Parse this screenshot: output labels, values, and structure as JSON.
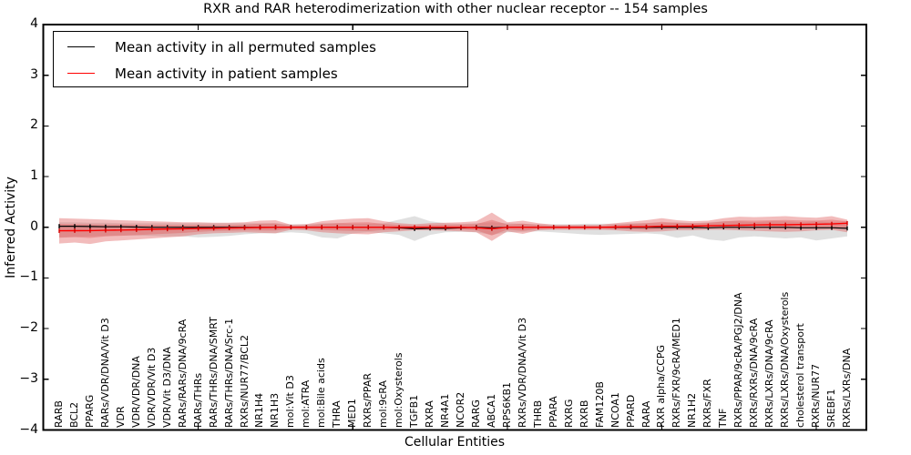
{
  "chart_data": {
    "type": "line",
    "title": "RXR and RAR heterodimerization with other nuclear receptor -- 154 samples",
    "xlabel": "Cellular Entities",
    "ylabel": "Inferred Activity",
    "ylim": [
      -4,
      4
    ],
    "ytick_values": [
      4,
      3,
      2,
      1,
      0,
      -1,
      -2,
      -3,
      -4
    ],
    "ytick_labels": [
      "4",
      "3",
      "2",
      "1",
      "0",
      "−1",
      "−2",
      "−3",
      "−4"
    ],
    "xtick_major_category_indices": [
      9,
      19,
      29,
      39,
      49
    ],
    "grid": false,
    "legend_position": "upper left",
    "categories": [
      "RARB",
      "BCL2",
      "PPARG",
      "RARs/VDR/DNA/Vit D3",
      "VDR",
      "VDR/VDR/DNA",
      "VDR/VDR/Vit D3",
      "VDR/Vit D3/DNA",
      "RARs/RARs/DNA/9cRA",
      "RARs/THRs",
      "RARs/THRs/DNA/SMRT",
      "RARs/THRs/DNA/Src-1",
      "RXRs/NUR77/BCL2",
      "NR1H4",
      "NR1H3",
      "mol:Vit D3",
      "mol:ATRA",
      "mol:Bile acids",
      "THRA",
      "MED1",
      "RXRs/PPAR",
      "mol:9cRA",
      "mol:Oxysterols",
      "TGFB1",
      "RXRA",
      "NR4A1",
      "NCOR2",
      "RARG",
      "ABCA1",
      "RPS6KB1",
      "RXRs/VDR/DNA/Vit D3",
      "THRB",
      "PPARA",
      "RXRG",
      "RXRB",
      "FAM120B",
      "NCOA1",
      "PPARD",
      "RARA",
      "RXR alpha/CCPG",
      "RXRs/FXR/9cRA/MED1",
      "NR1H2",
      "RXRs/FXR",
      "TNF",
      "RXRs/PPAR/9cRA/PGJ2/DNA",
      "RXRs/RXRs/DNA/9cRA",
      "RXRs/LXRs/DNA/9cRA",
      "RXRs/LXRs/DNA/Oxysterols",
      "cholesterol transport",
      "RXRs/NUR77",
      "SREBF1",
      "RXRs/LXRs/DNA"
    ],
    "series": [
      {
        "key": "permuted",
        "name": "Mean activity in all permuted samples",
        "color": "#000000",
        "marker_color": "#000000",
        "values": [
          0.02,
          0.02,
          0.015,
          0.01,
          0.01,
          0.005,
          0,
          0,
          0,
          0,
          0,
          0,
          0,
          0,
          0,
          0,
          0,
          0,
          0,
          0,
          0,
          0,
          -0.01,
          -0.03,
          -0.02,
          -0.02,
          -0.01,
          0,
          -0.01,
          0,
          0,
          0,
          0,
          0,
          0,
          0,
          0,
          0,
          0,
          0,
          0,
          0,
          -0.01,
          0,
          0,
          0,
          0,
          0,
          -0.01,
          -0.01,
          -0.01,
          -0.02
        ]
      },
      {
        "key": "patient",
        "name": "Mean activity in patient samples",
        "color": "#ff0000",
        "marker_color": "#d40000",
        "values": [
          -0.07,
          -0.068,
          -0.065,
          -0.06,
          -0.055,
          -0.05,
          -0.04,
          -0.035,
          -0.03,
          -0.025,
          -0.02,
          -0.015,
          -0.01,
          -0.005,
          0,
          0,
          0,
          0,
          0,
          0,
          0,
          0,
          0,
          0,
          0,
          0,
          0,
          -0.01,
          -0.03,
          0,
          0,
          0,
          0,
          0,
          0,
          0,
          0.005,
          0.01,
          0.01,
          0.02,
          0.02,
          0.025,
          0.03,
          0.035,
          0.04,
          0.045,
          0.05,
          0.05,
          0.055,
          0.06,
          0.065,
          0.08
        ]
      }
    ],
    "bands": [
      {
        "key": "permuted",
        "name": "permuted-samples-band",
        "color": "#999999",
        "opacity": 0.3,
        "hi": [
          0.1,
          0.1,
          0.09,
          0.09,
          0.08,
          0.08,
          0.08,
          0.08,
          0.08,
          0.08,
          0.08,
          0.08,
          0.08,
          0.08,
          0.08,
          0.06,
          0.06,
          0.08,
          0.08,
          0.07,
          0.07,
          0.08,
          0.15,
          0.22,
          0.12,
          0.08,
          0.07,
          0.08,
          0.1,
          0.08,
          0.07,
          0.06,
          0.06,
          0.06,
          0.07,
          0.07,
          0.07,
          0.08,
          0.08,
          0.08,
          0.1,
          0.08,
          0.1,
          0.12,
          0.12,
          0.1,
          0.12,
          0.12,
          0.1,
          0.12,
          0.1,
          0.12
        ],
        "lo": [
          -0.2,
          -0.19,
          -0.18,
          -0.17,
          -0.16,
          -0.16,
          -0.17,
          -0.18,
          -0.18,
          -0.2,
          -0.19,
          -0.17,
          -0.14,
          -0.12,
          -0.12,
          -0.1,
          -0.12,
          -0.2,
          -0.22,
          -0.12,
          -0.1,
          -0.12,
          -0.15,
          -0.27,
          -0.15,
          -0.1,
          -0.09,
          -0.1,
          -0.15,
          -0.1,
          -0.09,
          -0.08,
          -0.1,
          -0.12,
          -0.14,
          -0.15,
          -0.14,
          -0.13,
          -0.12,
          -0.14,
          -0.21,
          -0.16,
          -0.24,
          -0.27,
          -0.2,
          -0.18,
          -0.2,
          -0.22,
          -0.2,
          -0.26,
          -0.22,
          -0.18
        ]
      },
      {
        "key": "patient",
        "name": "patient-samples-band",
        "color": "#e06060",
        "opacity": 0.42,
        "inner_scale": 0.55,
        "hi": [
          0.18,
          0.17,
          0.16,
          0.15,
          0.14,
          0.13,
          0.12,
          0.11,
          0.1,
          0.1,
          0.09,
          0.09,
          0.1,
          0.13,
          0.14,
          0.05,
          0.06,
          0.12,
          0.15,
          0.17,
          0.18,
          0.12,
          0.08,
          0.06,
          0.08,
          0.09,
          0.1,
          0.12,
          0.29,
          0.1,
          0.13,
          0.08,
          0.05,
          0.05,
          0.05,
          0.05,
          0.08,
          0.11,
          0.14,
          0.18,
          0.14,
          0.12,
          0.13,
          0.18,
          0.21,
          0.2,
          0.21,
          0.22,
          0.2,
          0.19,
          0.22,
          0.15
        ],
        "lo": [
          -0.32,
          -0.3,
          -0.33,
          -0.28,
          -0.26,
          -0.24,
          -0.22,
          -0.2,
          -0.18,
          -0.14,
          -0.12,
          -0.11,
          -0.1,
          -0.11,
          -0.12,
          -0.05,
          -0.06,
          -0.1,
          -0.12,
          -0.13,
          -0.14,
          -0.1,
          -0.08,
          -0.06,
          -0.06,
          -0.07,
          -0.08,
          -0.1,
          -0.27,
          -0.08,
          -0.13,
          -0.06,
          -0.05,
          -0.05,
          -0.05,
          -0.05,
          -0.06,
          -0.08,
          -0.09,
          -0.08,
          -0.06,
          -0.06,
          -0.05,
          -0.05,
          -0.06,
          -0.07,
          -0.08,
          -0.09,
          -0.08,
          -0.06,
          -0.05,
          -0.1
        ]
      }
    ]
  }
}
